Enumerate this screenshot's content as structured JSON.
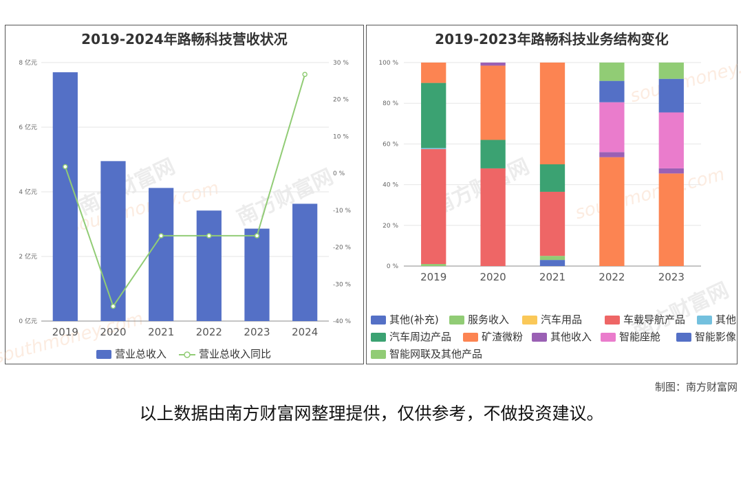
{
  "watermark": {
    "cn": "南方财富网",
    "en": "southmoney.com"
  },
  "footer": {
    "credit": "制图：南方财富网",
    "disclaimer": "以上数据由南方财富网整理提供，仅供参考，不做投资建议。"
  },
  "chart_data": [
    {
      "type": "bar",
      "title": "2019-2024年路畅科技营收状况",
      "categories": [
        "2019",
        "2020",
        "2021",
        "2022",
        "2023",
        "2024"
      ],
      "series": [
        {
          "name": "营业总收入",
          "type": "bar",
          "color": "#5470c6",
          "axis": "left",
          "values": [
            7.7,
            4.95,
            4.12,
            3.42,
            2.86,
            3.63
          ]
        },
        {
          "name": "营业总收入同比",
          "type": "line",
          "color": "#91cc75",
          "axis": "right",
          "values": [
            1.8,
            -36.0,
            -16.9,
            -16.9,
            -16.9,
            26.8
          ]
        }
      ],
      "y_left": {
        "ylim": [
          0,
          8
        ],
        "ticks": [
          0,
          2,
          4,
          6,
          8
        ],
        "tick_labels": [
          "0 亿元",
          "2 亿元",
          "4 亿元",
          "6 亿元",
          "8 亿元"
        ]
      },
      "y_right": {
        "ylim": [
          -40,
          30
        ],
        "ticks": [
          -40,
          -30,
          -20,
          -10,
          0,
          10,
          20,
          30
        ],
        "tick_labels": [
          "-40 %",
          "-30 %",
          "-20 %",
          "-10 %",
          "0 %",
          "10 %",
          "20 %",
          "30 %"
        ]
      },
      "legend": "bottom"
    },
    {
      "type": "bar",
      "stacked": true,
      "title": "2019-2023年路畅科技业务结构变化",
      "categories": [
        "2019",
        "2020",
        "2021",
        "2022",
        "2023"
      ],
      "ylim": [
        0,
        100
      ],
      "ticks": [
        0,
        20,
        40,
        60,
        80,
        100
      ],
      "tick_labels": [
        "0 %",
        "20 %",
        "40 %",
        "60 %",
        "80 %",
        "100 %"
      ],
      "series": [
        {
          "name": "其他(补充)",
          "color": "#5470c6",
          "values": [
            0,
            0,
            3,
            0,
            0
          ]
        },
        {
          "name": "服务收入",
          "color": "#91cc75",
          "values": [
            1,
            0,
            2,
            0,
            0
          ]
        },
        {
          "name": "汽车用品",
          "color": "#fac858",
          "values": [
            0,
            0,
            0,
            0,
            0
          ]
        },
        {
          "name": "车载导航产品",
          "color": "#ee6666",
          "values": [
            56.5,
            48,
            31.5,
            0,
            0
          ]
        },
        {
          "name": "其他",
          "color": "#73c0de",
          "values": [
            0.5,
            0,
            0,
            0,
            0
          ]
        },
        {
          "name": "汽车周边产品",
          "color": "#3ba272",
          "values": [
            32,
            14,
            13.5,
            0,
            0
          ]
        },
        {
          "name": "矿渣微粉",
          "color": "#fc8452",
          "values": [
            10,
            36.5,
            50,
            53.5,
            45.5
          ]
        },
        {
          "name": "其他收入",
          "color": "#9a60b4",
          "values": [
            0,
            1.5,
            0,
            2.5,
            2.5
          ]
        },
        {
          "name": "智能座舱",
          "color": "#ea7ccc",
          "values": [
            0,
            0,
            0,
            24.5,
            27.5
          ]
        },
        {
          "name": "智能影像",
          "color": "#5470c6",
          "values": [
            0,
            0,
            0,
            10.5,
            16.5
          ]
        },
        {
          "name": "智能网联及其他产品",
          "color": "#91cc75",
          "values": [
            0,
            0,
            0,
            9,
            8
          ]
        }
      ],
      "legend": "bottom"
    }
  ]
}
